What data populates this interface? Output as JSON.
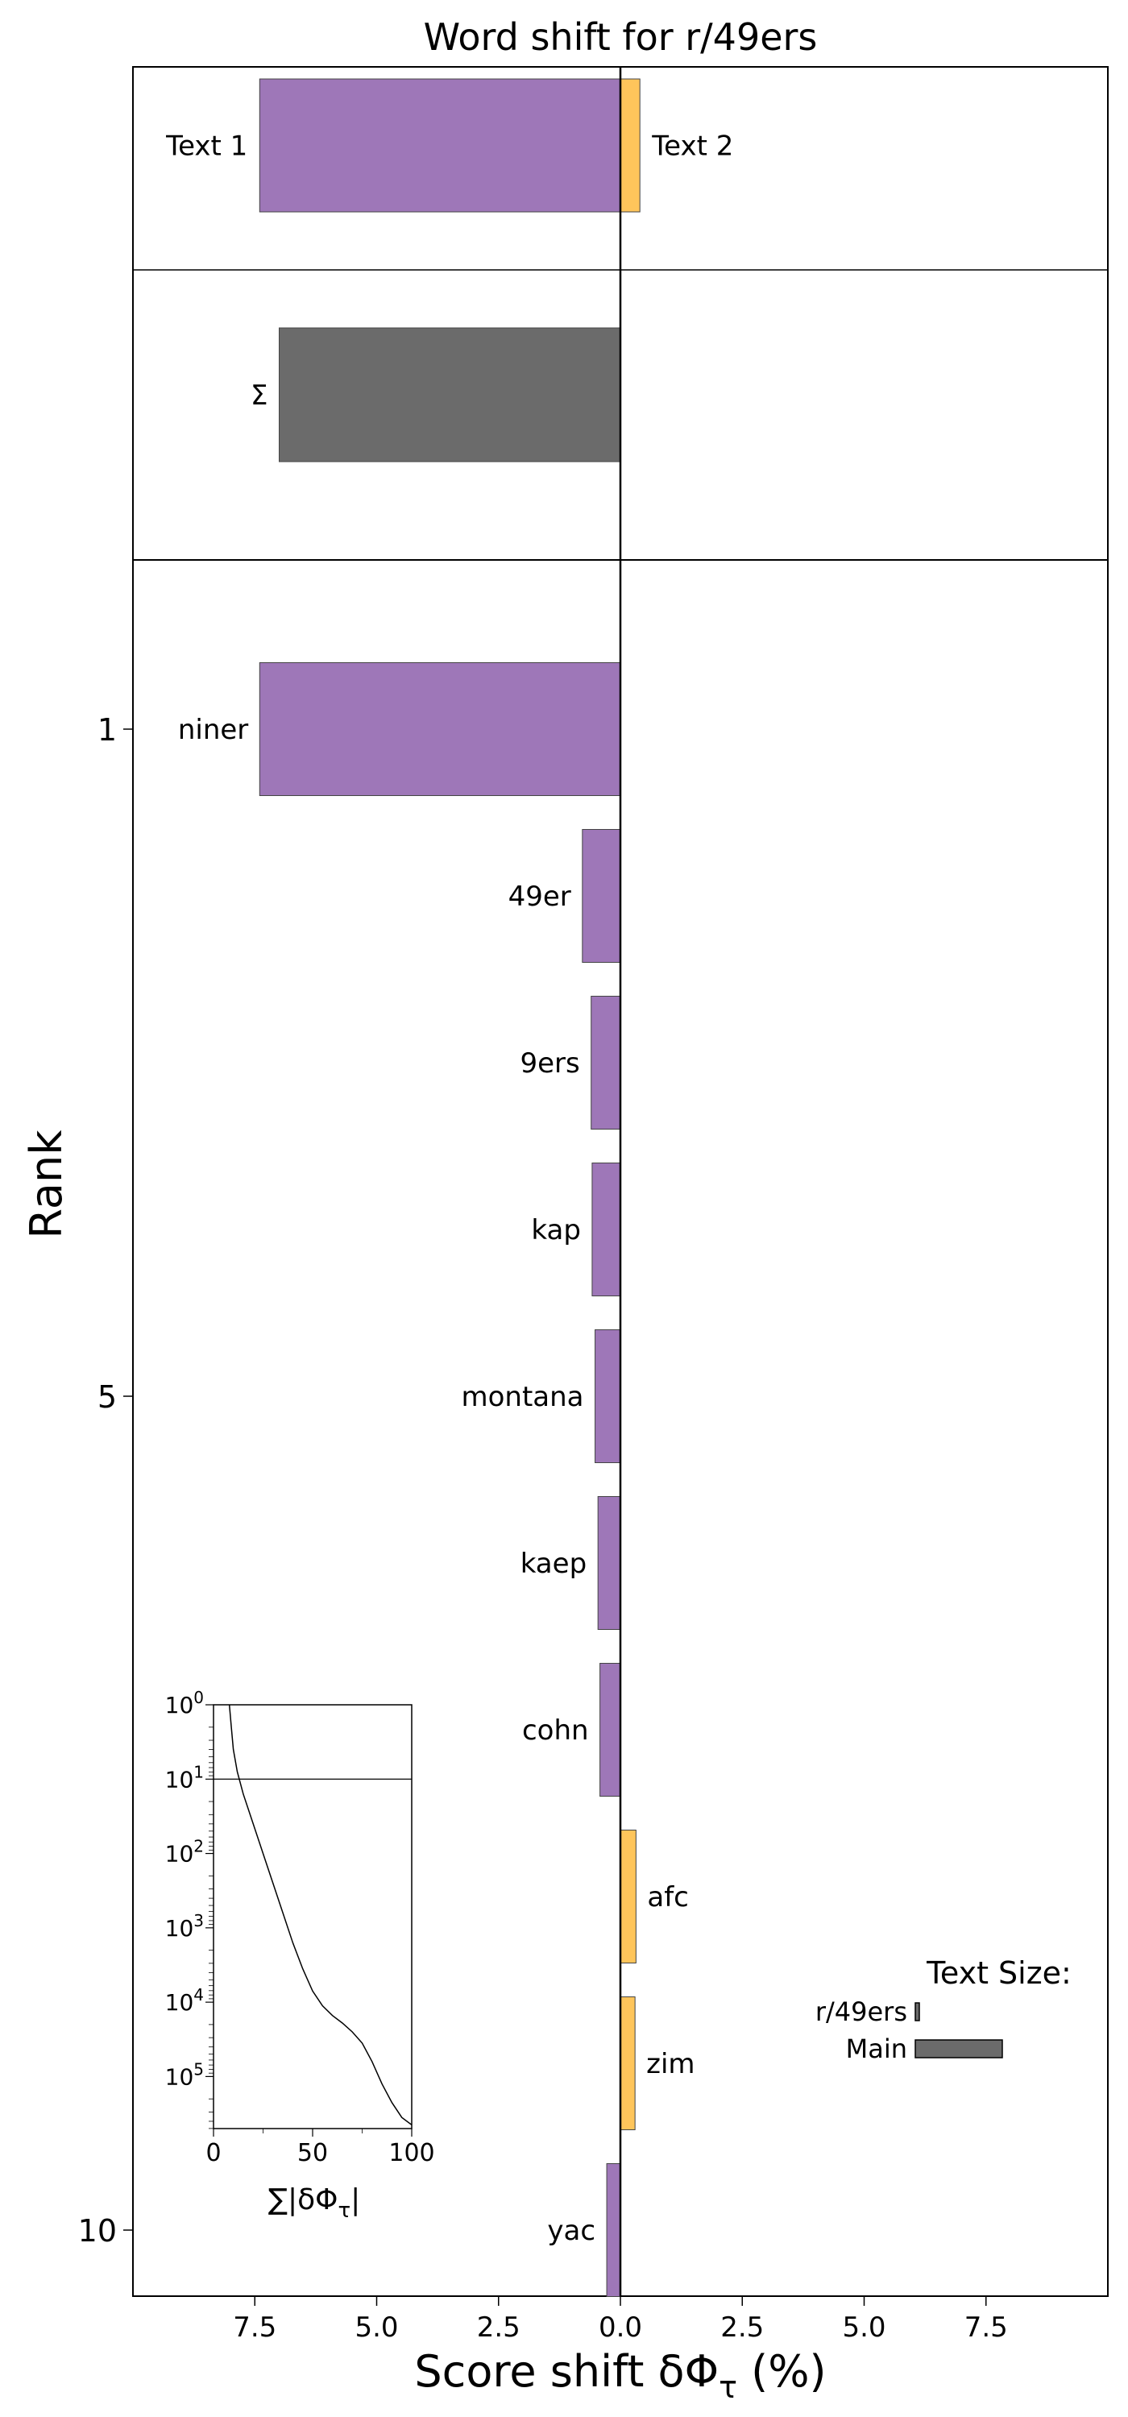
{
  "chart_data": {
    "type": "bar",
    "title": "Word shift for r/49ers",
    "xlabel": "Score shift δΦτ (%)",
    "xlabel_main": "Score shift δΦ",
    "xlabel_sub": "τ",
    "xlabel_tail": " (%)",
    "ylabel": "Rank",
    "xlim": [
      -10,
      10
    ],
    "xticks": [
      -7.5,
      -5.0,
      -2.5,
      0.0,
      2.5,
      5.0,
      7.5
    ],
    "xtick_labels": [
      "7.5",
      "5.0",
      "2.5",
      "0.0",
      "2.5",
      "5.0",
      "7.5"
    ],
    "yticks": [
      1,
      5,
      10
    ],
    "yticks_labels": [
      "1",
      "5",
      "10"
    ],
    "colors": {
      "text1": "#9e77b8",
      "text2": "#fec55b",
      "sum": "#6b6b6b"
    },
    "summary": {
      "text1_label": "Text 1",
      "text2_label": "Text 2",
      "text1_value": -7.4,
      "text2_value": 0.4,
      "sum_label": "Σ",
      "sum_value": -7.0
    },
    "words": [
      {
        "rank": 1,
        "word": "niner",
        "value": -7.4
      },
      {
        "rank": 2,
        "word": "49er",
        "value": -0.78
      },
      {
        "rank": 3,
        "word": "9ers",
        "value": -0.6
      },
      {
        "rank": 4,
        "word": "kap",
        "value": -0.58
      },
      {
        "rank": 5,
        "word": "montana",
        "value": -0.52
      },
      {
        "rank": 6,
        "word": "kaep",
        "value": -0.46
      },
      {
        "rank": 7,
        "word": "cohn",
        "value": -0.42
      },
      {
        "rank": 8,
        "word": "afc",
        "value": 0.32
      },
      {
        "rank": 9,
        "word": "zim",
        "value": 0.3
      },
      {
        "rank": 10,
        "word": "yac",
        "value": -0.28
      }
    ],
    "text_size_legend": {
      "title": "Text Size:",
      "items": [
        {
          "label": "r/49ers",
          "relative_size": 0.04
        },
        {
          "label": "Main",
          "relative_size": 1.0
        }
      ]
    },
    "inset": {
      "xlabel": "∑|δΦτ|",
      "xlabel_main": "∑|δΦ",
      "xlabel_sub": "τ",
      "xlabel_tail": "|",
      "xticks": [
        0,
        50,
        100
      ],
      "yticks_exponents": [
        0,
        1,
        2,
        3,
        4,
        5
      ],
      "y_exponent_max": 5.7,
      "ytick_base": "10",
      "reference_exponent": 1,
      "curve": [
        [
          8,
          0
        ],
        [
          9,
          0.3
        ],
        [
          10,
          0.6
        ],
        [
          12,
          0.9
        ],
        [
          15,
          1.2
        ],
        [
          20,
          1.6
        ],
        [
          25,
          2.0
        ],
        [
          30,
          2.4
        ],
        [
          35,
          2.8
        ],
        [
          40,
          3.2
        ],
        [
          45,
          3.55
        ],
        [
          50,
          3.85
        ],
        [
          55,
          4.05
        ],
        [
          60,
          4.18
        ],
        [
          65,
          4.28
        ],
        [
          70,
          4.4
        ],
        [
          75,
          4.55
        ],
        [
          80,
          4.8
        ],
        [
          85,
          5.1
        ],
        [
          90,
          5.35
        ],
        [
          95,
          5.55
        ],
        [
          100,
          5.65
        ]
      ]
    }
  }
}
